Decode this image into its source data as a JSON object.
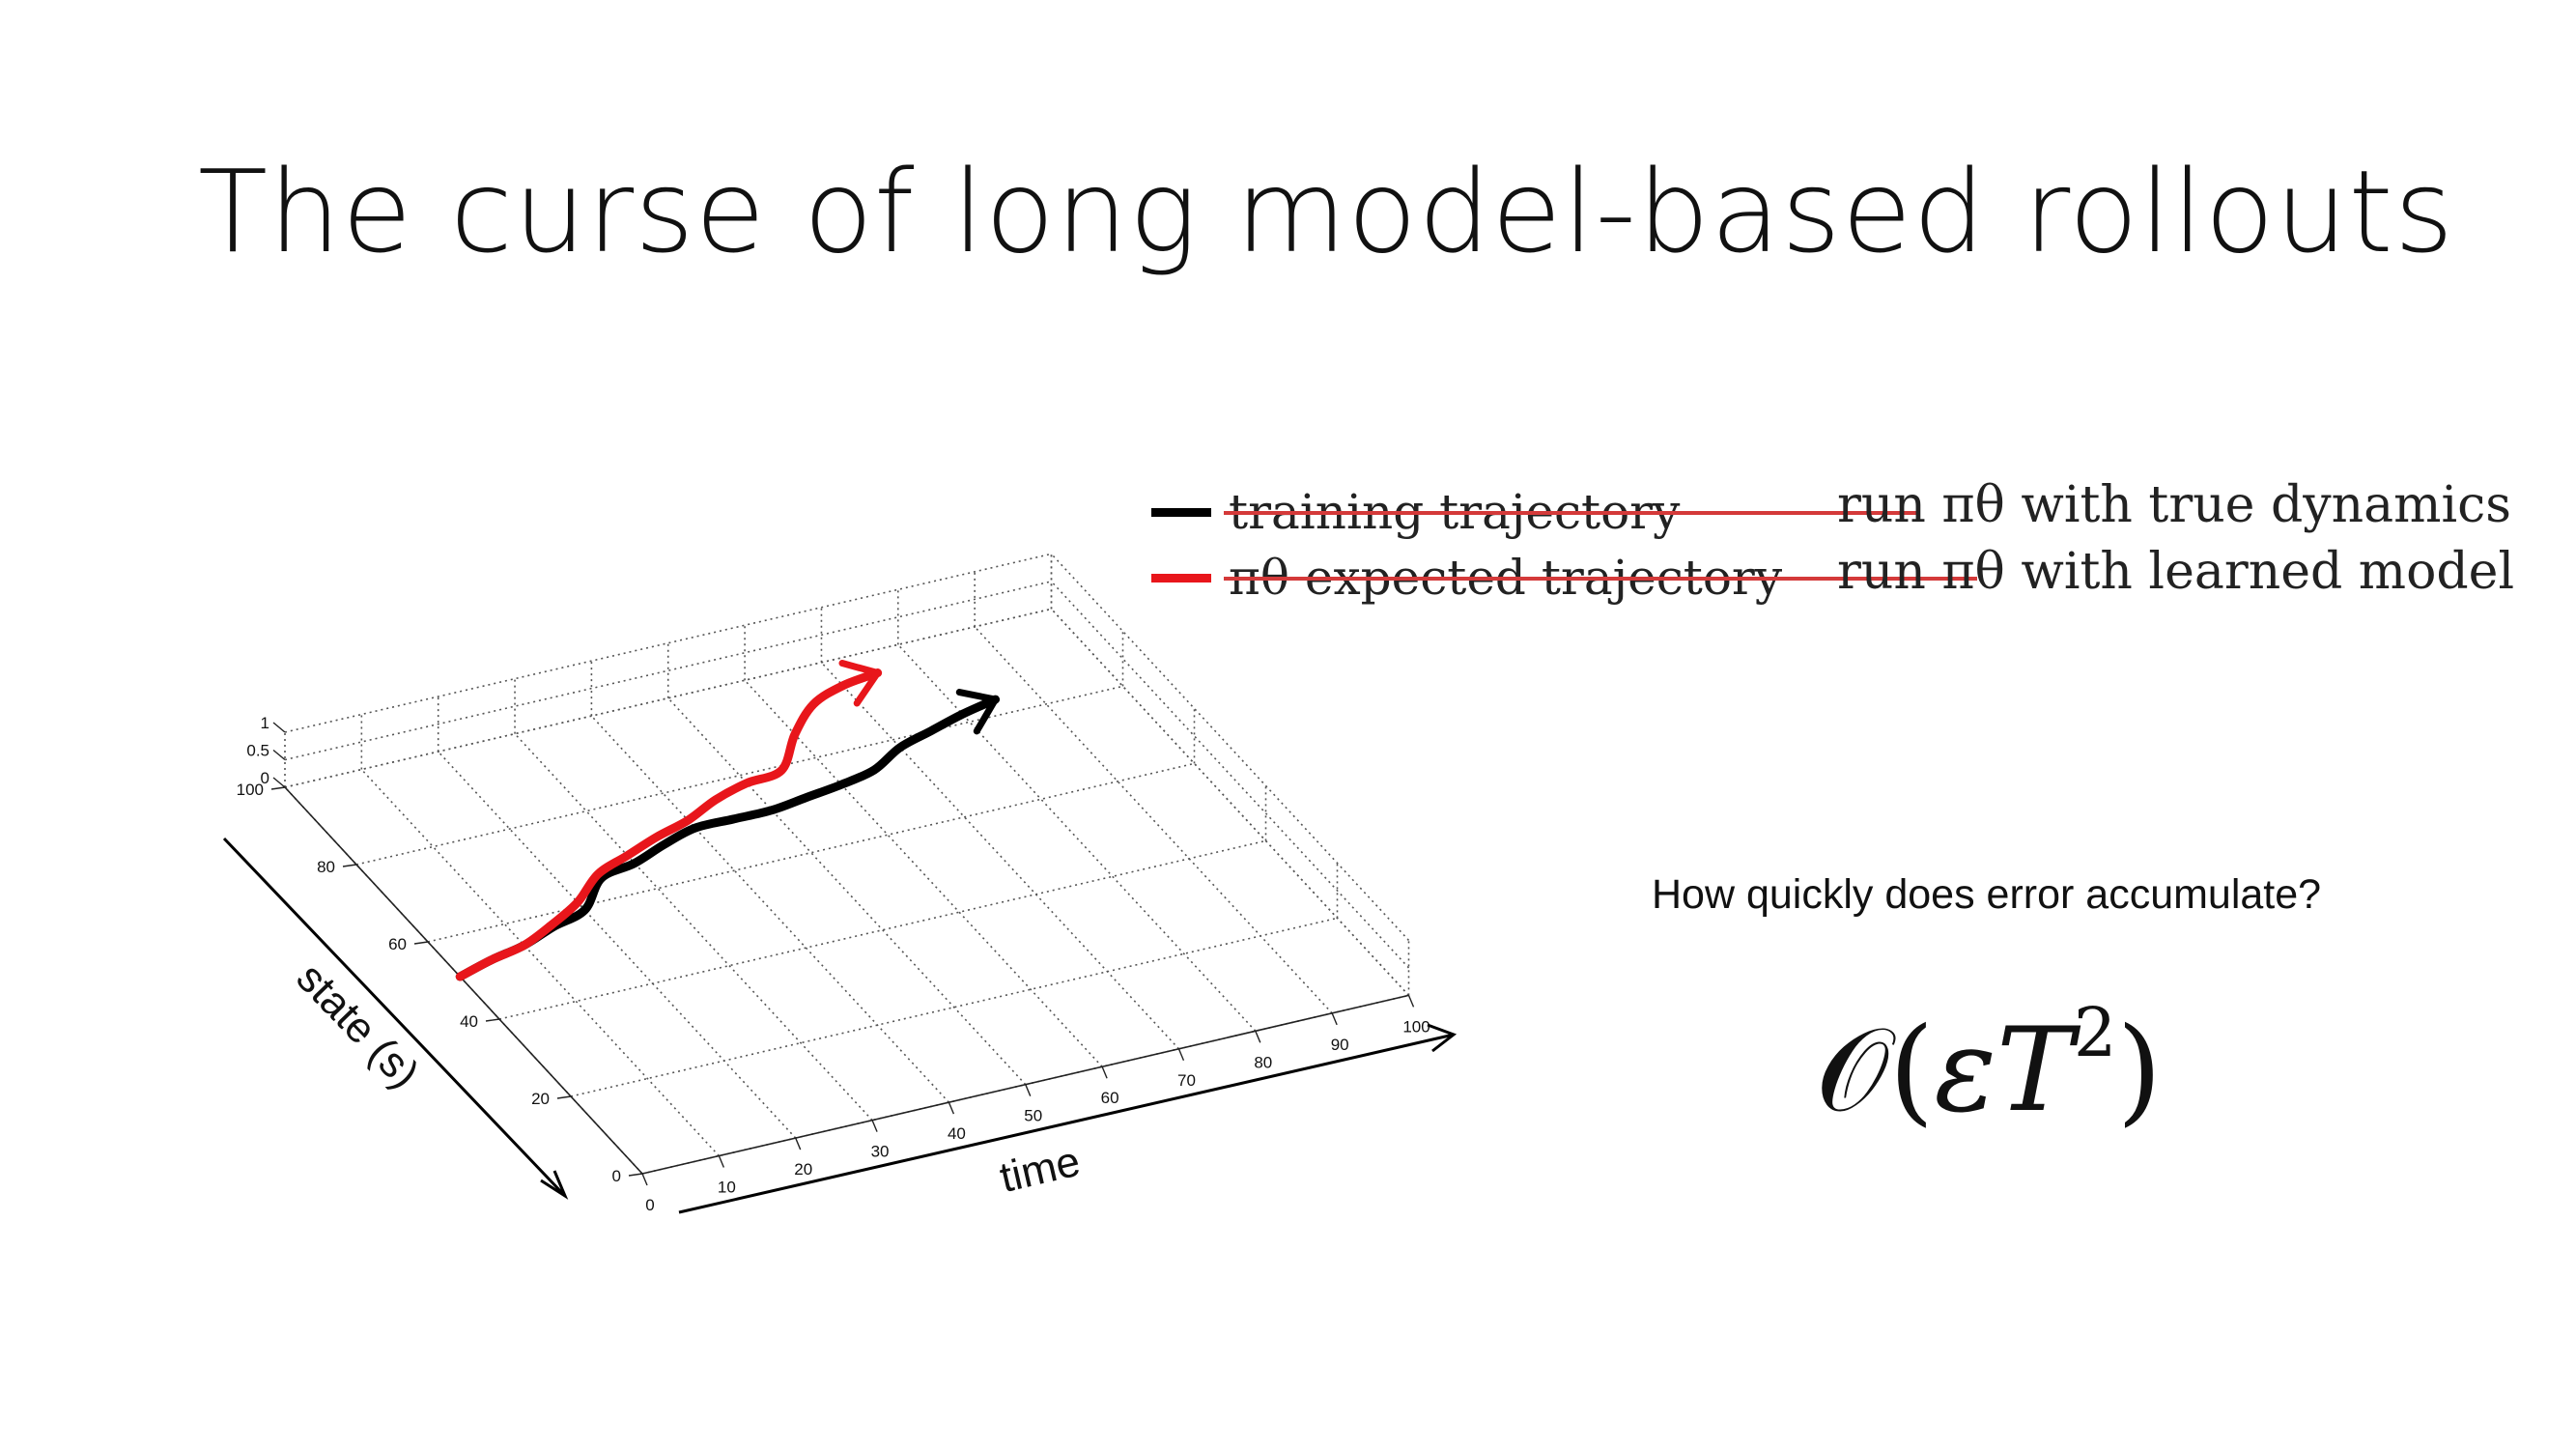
{
  "slide": {
    "title": "The curse of long model-based rollouts",
    "question": "How quickly does error accumulate?",
    "formula": {
      "symbol": "𝒪",
      "open": "(",
      "epsilon": "ε",
      "T": "T",
      "power": "2",
      "close": ")"
    }
  },
  "legend": {
    "items": [
      {
        "text": "training trajectory",
        "color": "#000000",
        "struck": true
      },
      {
        "text": "πθ expected trajectory",
        "color": "#e8161b",
        "struck": true
      }
    ],
    "replacements": [
      "run πθ with true dynamics",
      "run πθ with learned model"
    ],
    "strike_color": "#d43a3a"
  },
  "chart_data": {
    "type": "line",
    "xlabel": "time",
    "ylabel": "state (s)",
    "xlim": [
      0,
      100
    ],
    "ylim": [
      0,
      100
    ],
    "zlim": [
      0,
      1
    ],
    "x_ticks": [
      0,
      10,
      20,
      30,
      40,
      50,
      60,
      70,
      80,
      90,
      100
    ],
    "y_ticks": [
      0,
      20,
      40,
      60,
      80,
      100
    ],
    "z_ticks": [
      0,
      0.5,
      1
    ],
    "grid": true,
    "series": [
      {
        "color": "#000000",
        "x": [
          0,
          5,
          10,
          15,
          20,
          25,
          30,
          35,
          40,
          45,
          50,
          55,
          60,
          65,
          70,
          75,
          80,
          85
        ],
        "y": [
          51,
          53,
          54.5,
          57,
          59,
          65,
          66.5,
          69,
          71,
          71,
          71,
          72,
          73,
          74.5,
          78,
          80,
          82,
          83.5
        ]
      },
      {
        "color": "#e8161b",
        "x": [
          0,
          5,
          10,
          15,
          20,
          25,
          30,
          35,
          40,
          45,
          50,
          55,
          60,
          65,
          70,
          75
        ],
        "y": [
          51,
          53,
          54.5,
          57.5,
          61,
          66,
          68.5,
          71,
          73,
          76,
          78,
          79,
          86,
          91.5,
          94,
          95
        ]
      }
    ]
  }
}
